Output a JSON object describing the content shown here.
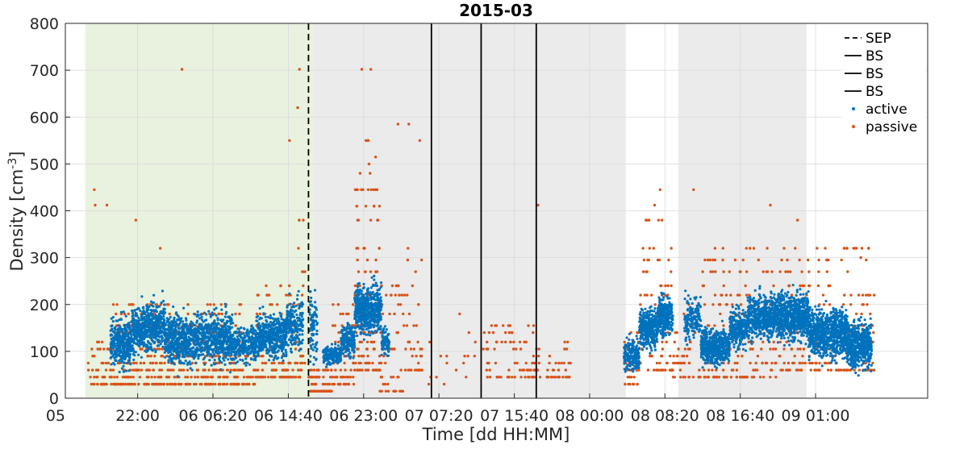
{
  "chart_data": {
    "type": "scatter",
    "title": "2015-03",
    "xlabel": "Time [dd HH:MM]",
    "ylabel_main": "Density [cm",
    "ylabel_sup": "-3",
    "ylabel_close": "]",
    "ylim": [
      0,
      800
    ],
    "y_ticks": [
      0,
      100,
      200,
      300,
      400,
      500,
      600,
      700,
      800
    ],
    "x_unit": "hours since 05 14:00",
    "xlim": [
      0,
      95.4
    ],
    "x_ticks": [
      {
        "h": 0,
        "label": "05"
      },
      {
        "h": 8,
        "label": "22:00"
      },
      {
        "h": 16.33,
        "label": "06 06:20"
      },
      {
        "h": 24.67,
        "label": "06 14:40"
      },
      {
        "h": 33,
        "label": "06 23:00"
      },
      {
        "h": 41.33,
        "label": "07 07:20"
      },
      {
        "h": 49.67,
        "label": "07 15:40"
      },
      {
        "h": 58,
        "label": "08 00:00"
      },
      {
        "h": 66.33,
        "label": "08 08:20"
      },
      {
        "h": 74.67,
        "label": "08 16:40"
      },
      {
        "h": 83,
        "label": "09 01:00"
      }
    ],
    "grid": true,
    "legend_position": "top-right",
    "shaded_regions": [
      {
        "from": 2.2,
        "to": 27.5,
        "color": "#e9f1df"
      },
      {
        "from": 27.5,
        "to": 62.0,
        "color": "#ebebeb"
      },
      {
        "from": 67.8,
        "to": 82.0,
        "color": "#ebebeb"
      }
    ],
    "vlines": [
      {
        "x": 26.9,
        "style": "dashed",
        "name": "SEP"
      },
      {
        "x": 40.5,
        "style": "solid",
        "name": "BS"
      },
      {
        "x": 46.0,
        "style": "solid",
        "name": "BS"
      },
      {
        "x": 52.1,
        "style": "solid",
        "name": "BS"
      }
    ],
    "legend": [
      {
        "label": "SEP",
        "kind": "dashed"
      },
      {
        "label": "BS",
        "kind": "solid"
      },
      {
        "label": "BS",
        "kind": "solid"
      },
      {
        "label": "BS",
        "kind": "solid"
      },
      {
        "label": "active",
        "kind": "dot",
        "color": "#0072bd"
      },
      {
        "label": "passive",
        "kind": "dot",
        "color": "#d95319"
      }
    ],
    "series": [
      {
        "name": "active",
        "color": "#0072bd",
        "segments": [
          {
            "x0": 5.0,
            "x1": 7.3,
            "mean": 120,
            "spread": 55,
            "density": 1.0
          },
          {
            "x0": 7.3,
            "x1": 8.5,
            "mean": 145,
            "spread": 55,
            "density": 1.0
          },
          {
            "x0": 8.5,
            "x1": 11.0,
            "mean": 155,
            "spread": 55,
            "density": 0.9
          },
          {
            "x0": 11.0,
            "x1": 14.5,
            "mean": 125,
            "spread": 55,
            "density": 0.9
          },
          {
            "x0": 14.5,
            "x1": 18.5,
            "mean": 130,
            "spread": 55,
            "density": 0.9
          },
          {
            "x0": 18.5,
            "x1": 21.0,
            "mean": 115,
            "spread": 40,
            "density": 0.6
          },
          {
            "x0": 21.0,
            "x1": 24.5,
            "mean": 135,
            "spread": 50,
            "density": 0.9
          },
          {
            "x0": 24.5,
            "x1": 26.3,
            "mean": 160,
            "spread": 55,
            "density": 0.7
          },
          {
            "x0": 27.0,
            "x1": 27.9,
            "mean": 150,
            "spread": 90,
            "density": 0.6
          },
          {
            "x0": 28.5,
            "x1": 30.5,
            "mean": 90,
            "spread": 20,
            "density": 0.6
          },
          {
            "x0": 30.5,
            "x1": 32.0,
            "mean": 125,
            "spread": 35,
            "density": 0.9
          },
          {
            "x0": 32.0,
            "x1": 35.0,
            "mean": 190,
            "spread": 55,
            "density": 1.2
          },
          {
            "x0": 35.0,
            "x1": 35.8,
            "mean": 120,
            "spread": 30,
            "density": 0.8
          },
          {
            "x0": 61.8,
            "x1": 63.5,
            "mean": 90,
            "spread": 35,
            "density": 0.8
          },
          {
            "x0": 63.5,
            "x1": 65.5,
            "mean": 150,
            "spread": 45,
            "density": 1.1
          },
          {
            "x0": 65.5,
            "x1": 67.2,
            "mean": 175,
            "spread": 45,
            "density": 1.0
          },
          {
            "x0": 68.5,
            "x1": 70.3,
            "mean": 170,
            "spread": 45,
            "density": 0.6
          },
          {
            "x0": 70.3,
            "x1": 73.5,
            "mean": 110,
            "spread": 40,
            "density": 1.0
          },
          {
            "x0": 73.5,
            "x1": 75.5,
            "mean": 150,
            "spread": 45,
            "density": 0.9
          },
          {
            "x0": 75.5,
            "x1": 78.8,
            "mean": 175,
            "spread": 50,
            "density": 1.0
          },
          {
            "x0": 78.8,
            "x1": 82.2,
            "mean": 175,
            "spread": 55,
            "density": 1.2
          },
          {
            "x0": 82.2,
            "x1": 86.5,
            "mean": 140,
            "spread": 55,
            "density": 1.2
          },
          {
            "x0": 86.5,
            "x1": 89.2,
            "mean": 115,
            "spread": 55,
            "density": 1.3
          }
        ]
      },
      {
        "name": "passive",
        "color": "#d95319",
        "levels": [
          15,
          30,
          45,
          60,
          75,
          90,
          105,
          120,
          140,
          155,
          180,
          200,
          220,
          240,
          270,
          295,
          320,
          380,
          410,
          445,
          480,
          500,
          515,
          550,
          585
        ],
        "segments": [
          {
            "x0": 2.5,
            "x1": 5.0,
            "lo": 30,
            "hi": 130,
            "density": 0.5
          },
          {
            "x0": 5.0,
            "x1": 12.0,
            "lo": 30,
            "hi": 210,
            "density": 0.9
          },
          {
            "x0": 12.0,
            "x1": 19.5,
            "lo": 20,
            "hi": 210,
            "density": 0.9
          },
          {
            "x0": 19.5,
            "x1": 21.0,
            "lo": 20,
            "hi": 130,
            "density": 0.6
          },
          {
            "x0": 21.0,
            "x1": 25.5,
            "lo": 40,
            "hi": 240,
            "density": 0.8
          },
          {
            "x0": 25.5,
            "x1": 26.5,
            "lo": 40,
            "hi": 450,
            "density": 0.8
          },
          {
            "x0": 26.8,
            "x1": 29.5,
            "lo": 10,
            "hi": 60,
            "density": 0.8
          },
          {
            "x0": 29.5,
            "x1": 32.0,
            "lo": 30,
            "hi": 200,
            "density": 0.8
          },
          {
            "x0": 32.0,
            "x1": 34.8,
            "lo": 50,
            "hi": 550,
            "density": 1.3
          },
          {
            "x0": 34.8,
            "x1": 37.5,
            "lo": 15,
            "hi": 250,
            "density": 0.6
          },
          {
            "x0": 37.5,
            "x1": 39.5,
            "lo": 60,
            "hi": 330,
            "density": 0.5
          },
          {
            "x0": 40.0,
            "x1": 42.5,
            "lo": 30,
            "hi": 120,
            "density": 0.08
          },
          {
            "x0": 42.5,
            "x1": 45.5,
            "lo": 40,
            "hi": 190,
            "density": 0.08
          },
          {
            "x0": 46.2,
            "x1": 52.0,
            "lo": 40,
            "hi": 160,
            "density": 0.35
          },
          {
            "x0": 52.0,
            "x1": 56.0,
            "lo": 40,
            "hi": 130,
            "density": 0.25
          },
          {
            "x0": 61.8,
            "x1": 63.5,
            "lo": 20,
            "hi": 150,
            "density": 0.6
          },
          {
            "x0": 63.5,
            "x1": 67.2,
            "lo": 60,
            "hi": 380,
            "density": 0.6
          },
          {
            "x0": 67.2,
            "x1": 70.3,
            "lo": 40,
            "hi": 200,
            "density": 0.4
          },
          {
            "x0": 70.3,
            "x1": 78.8,
            "lo": 40,
            "hi": 320,
            "density": 0.5
          },
          {
            "x0": 78.8,
            "x1": 82.5,
            "lo": 60,
            "hi": 330,
            "density": 0.5
          },
          {
            "x0": 82.5,
            "x1": 89.5,
            "lo": 60,
            "hi": 320,
            "density": 0.5
          }
        ],
        "outliers": [
          {
            "x": 3.2,
            "y": 445
          },
          {
            "x": 3.3,
            "y": 412
          },
          {
            "x": 4.6,
            "y": 412
          },
          {
            "x": 7.8,
            "y": 380
          },
          {
            "x": 10.5,
            "y": 320
          },
          {
            "x": 12.9,
            "y": 702
          },
          {
            "x": 25.7,
            "y": 620
          },
          {
            "x": 25.9,
            "y": 702
          },
          {
            "x": 24.8,
            "y": 550
          },
          {
            "x": 32.8,
            "y": 702
          },
          {
            "x": 33.8,
            "y": 702
          },
          {
            "x": 36.8,
            "y": 585
          },
          {
            "x": 38.0,
            "y": 585
          },
          {
            "x": 39.2,
            "y": 550
          },
          {
            "x": 52.3,
            "y": 412
          },
          {
            "x": 65.2,
            "y": 412
          },
          {
            "x": 65.8,
            "y": 445
          },
          {
            "x": 69.5,
            "y": 445
          },
          {
            "x": 78.0,
            "y": 412
          },
          {
            "x": 81.0,
            "y": 380
          },
          {
            "x": 87.2,
            "y": 320
          },
          {
            "x": 88.0,
            "y": 300
          }
        ]
      }
    ]
  }
}
